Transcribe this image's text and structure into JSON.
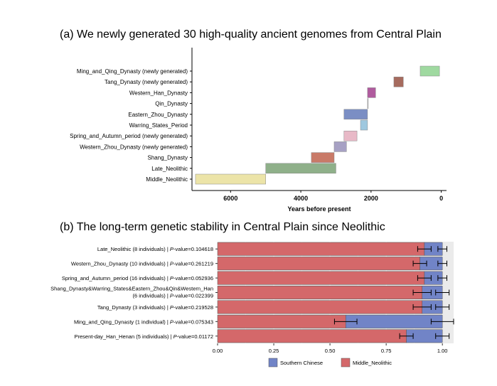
{
  "chart_data": [
    {
      "type": "bar",
      "subtype": "timeline-range",
      "title": "(a) We newly generated 30 high-quality ancient genomes from Central Plain",
      "xlabel": "Years before present",
      "ylabel": "",
      "xlim": [
        7100,
        -150
      ],
      "x_reversed": true,
      "x_ticks": [
        6000,
        4000,
        2000,
        0
      ],
      "x_tick_labels": [
        "6000",
        "4000",
        "2000",
        "0"
      ],
      "grid": false,
      "categories": [
        "Ming_and_Qing_Dynasty (newly generated)",
        "Tang_Dynasty (newly generated)",
        "Western_Han_Dynasty",
        "Qin_Dynasty",
        "Eastern_Zhou_Dynasty",
        "Warring_States_Period",
        "Spring_and_Autumn_period (newly generated)",
        "Western_Zhou_Dynasty (newly generated)",
        "Shang_Dynasty",
        "Late_Neolithic",
        "Middle_Neolithic"
      ],
      "ranges": [
        {
          "start": 600,
          "end": 50,
          "color": "#9fd9a0"
        },
        {
          "start": 1350,
          "end": 1080,
          "color": "#a66b5e"
        },
        {
          "start": 2100,
          "end": 1870,
          "color": "#b05b9e"
        },
        {
          "start": 2100,
          "end": 2080,
          "color": "#c9c9c9"
        },
        {
          "start": 2770,
          "end": 2100,
          "color": "#7b8ec4"
        },
        {
          "start": 2300,
          "end": 2100,
          "color": "#9ec8df"
        },
        {
          "start": 2770,
          "end": 2400,
          "color": "#e8b9c7"
        },
        {
          "start": 3050,
          "end": 2700,
          "color": "#a7a1c4"
        },
        {
          "start": 3700,
          "end": 3050,
          "color": "#c97a68"
        },
        {
          "start": 5000,
          "end": 3000,
          "color": "#8fb08a"
        },
        {
          "start": 7000,
          "end": 5000,
          "color": "#ece4a8"
        }
      ]
    },
    {
      "type": "bar",
      "subtype": "stacked-horizontal",
      "title": "(b) The long-term genetic stability in Central Plain since Neolithic",
      "xlabel": "",
      "ylabel": "",
      "xlim": [
        0,
        1.05
      ],
      "x_ticks": [
        0,
        0.25,
        0.5,
        0.75,
        1.0
      ],
      "x_tick_labels": [
        "0.00",
        "0.25",
        "0.50",
        "0.75",
        "1.00"
      ],
      "grid": true,
      "legend_position": "bottom",
      "categories": [
        [
          "Late_Neolithic (8 individuals) | ",
          "P",
          "-value=0.104618"
        ],
        [
          "Western_Zhou_Dynasty (10 individuals) | ",
          "P",
          "-value=0.261219"
        ],
        [
          "Spring_and_Autumn_period (16 individuals) | ",
          "P",
          "-value=0.052936"
        ],
        [
          "Shang_Dynasty&Warring_States&Eastern_Zhou&Qin&Western_Han",
          "(6 individuals) | ",
          "P",
          "-value=0.022399"
        ],
        [
          "Tang_Dynasty (3 individuals) | ",
          "P",
          "-value=0.219528"
        ],
        [
          "Ming_and_Qing_Dynasty (1 individual) | ",
          "P",
          "-value=0.075343"
        ],
        [
          "Present-day_Han_Henan (5 individuals) | ",
          "P",
          "-value=0.01172"
        ]
      ],
      "series": [
        {
          "name": "Middle_Neolithic",
          "color": "#d4686a",
          "values": [
            0.92,
            0.9,
            0.92,
            0.91,
            0.91,
            0.57,
            0.84
          ],
          "err": [
            0.03,
            0.03,
            0.03,
            0.04,
            0.04,
            0.05,
            0.03
          ]
        },
        {
          "name": "Southern Chinese",
          "color": "#7184c7",
          "values": [
            0.08,
            0.1,
            0.08,
            0.09,
            0.09,
            0.43,
            0.16
          ],
          "err": [
            0.02,
            0.02,
            0.02,
            0.03,
            0.03,
            0.05,
            0.03
          ]
        }
      ],
      "legend_order": [
        "Southern Chinese",
        "Middle_Neolithic"
      ]
    }
  ]
}
